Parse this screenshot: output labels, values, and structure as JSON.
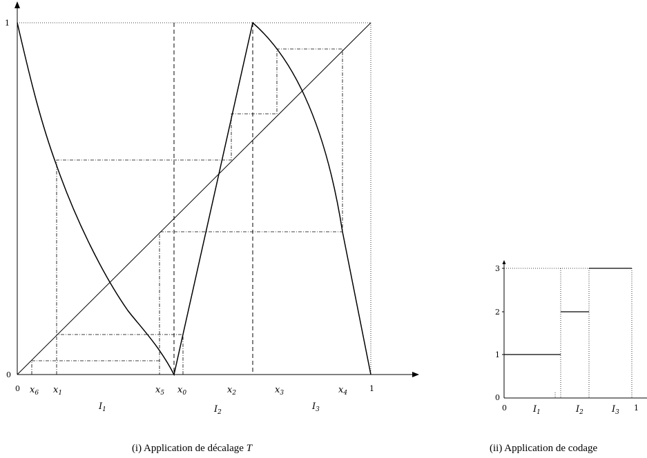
{
  "main_figure": {
    "y_axis": {
      "zero": "0",
      "one": "1"
    },
    "x_axis": {
      "zero": "0",
      "one": "1",
      "points": [
        "x",
        "x",
        "x",
        "x",
        "x",
        "x",
        "x"
      ],
      "subscripts": [
        "6",
        "1",
        "5",
        "0",
        "2",
        "3",
        "4"
      ]
    },
    "intervals": [
      "I",
      "I",
      "I"
    ],
    "interval_subscripts": [
      "1",
      "2",
      "3"
    ]
  },
  "secondary_figure": {
    "y_ticks": [
      "3",
      "2",
      "1",
      "0"
    ],
    "x_zero": "0",
    "x_one": "1",
    "intervals": [
      "I",
      "I",
      "I"
    ],
    "interval_subscripts": [
      "1",
      "2",
      "3"
    ]
  },
  "captions": {
    "left_prefix": "(i) Application de décalage",
    "left_symbol": "T",
    "right": "(ii) Application de codage"
  }
}
